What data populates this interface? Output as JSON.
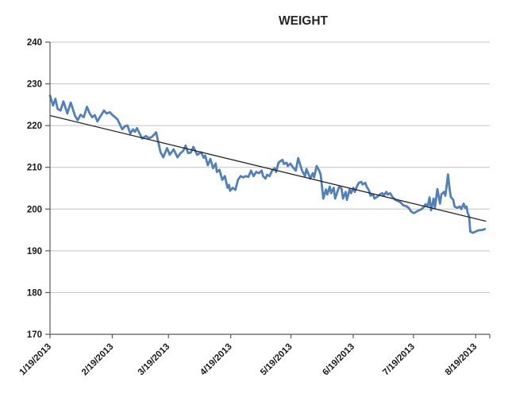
{
  "chart_data": {
    "type": "line",
    "title": "WEIGHT",
    "legend": "none",
    "grid": "horizontal",
    "colors": {
      "series": "#4F81BD",
      "trend": "#262626",
      "grid": "#C3C3C3",
      "axis": "#595959",
      "text": "#1a1a1a",
      "background": "#FFFFFF"
    },
    "x_axis": {
      "unit": "days since 1/19/2013",
      "tick_labels": [
        "1/19/2013",
        "2/19/2013",
        "3/19/2013",
        "4/19/2013",
        "5/19/2013",
        "6/19/2013",
        "7/19/2013",
        "8/19/2013"
      ],
      "tick_days": [
        0,
        31,
        59,
        90,
        120,
        151,
        181,
        212
      ],
      "range_days": [
        0,
        219
      ],
      "edge_tick_day": 219,
      "label_rotation_deg": -45
    },
    "y_axis": {
      "ticks": [
        170,
        180,
        190,
        200,
        210,
        220,
        230,
        240
      ],
      "range": [
        170,
        240
      ]
    },
    "series": [
      {
        "name": "Weight",
        "kind": "data",
        "color_key": "series",
        "stroke_width": 2.8,
        "points": [
          [
            0,
            227.2
          ],
          [
            1.5,
            224.8
          ],
          [
            2.7,
            226.4
          ],
          [
            3.8,
            224.0
          ],
          [
            5.2,
            223.6
          ],
          [
            6.7,
            225.8
          ],
          [
            8.6,
            222.9
          ],
          [
            10.3,
            225.5
          ],
          [
            12.5,
            222.3
          ],
          [
            13.8,
            221.3
          ],
          [
            15.2,
            222.6
          ],
          [
            16.8,
            222.0
          ],
          [
            18.4,
            224.5
          ],
          [
            19.7,
            223.0
          ],
          [
            21,
            222.0
          ],
          [
            22.3,
            222.5
          ],
          [
            23.6,
            221.0
          ],
          [
            25.2,
            222.3
          ],
          [
            26.9,
            223.6
          ],
          [
            28.2,
            222.9
          ],
          [
            29.8,
            223.2
          ],
          [
            31.1,
            222.5
          ],
          [
            32.2,
            222.1
          ],
          [
            33.6,
            221.5
          ],
          [
            34.8,
            220.3
          ],
          [
            36,
            219.1
          ],
          [
            37.4,
            219.9
          ],
          [
            38.6,
            220.0
          ],
          [
            40,
            218.1
          ],
          [
            41.3,
            219.1
          ],
          [
            42.3,
            218.5
          ],
          [
            43.3,
            219.4
          ],
          [
            44.6,
            218.1
          ],
          [
            45.9,
            216.9
          ],
          [
            47.8,
            217.5
          ],
          [
            49.1,
            217.0
          ],
          [
            50.5,
            217.2
          ],
          [
            51.6,
            217.7
          ],
          [
            52.8,
            218.4
          ],
          [
            54,
            215.9
          ],
          [
            55,
            213.7
          ],
          [
            56.4,
            212.4
          ],
          [
            58.3,
            214.6
          ],
          [
            59.6,
            213.0
          ],
          [
            61.6,
            214.3
          ],
          [
            63.5,
            212.4
          ],
          [
            65,
            213.4
          ],
          [
            66.3,
            213.9
          ],
          [
            67.5,
            215.2
          ],
          [
            68.8,
            213.4
          ],
          [
            70.1,
            213.5
          ],
          [
            71.4,
            214.9
          ],
          [
            73.3,
            213.0
          ],
          [
            75.3,
            213.6
          ],
          [
            76.5,
            212.3
          ],
          [
            77.3,
            212.8
          ],
          [
            78.6,
            210.5
          ],
          [
            79.9,
            212.0
          ],
          [
            81.2,
            209.8
          ],
          [
            82.5,
            210.9
          ],
          [
            83.1,
            208.9
          ],
          [
            84.4,
            209.4
          ],
          [
            85.8,
            207.0
          ],
          [
            87.1,
            207.9
          ],
          [
            88.4,
            205.1
          ],
          [
            89.1,
            205.8
          ],
          [
            89.7,
            204.4
          ],
          [
            91,
            205.1
          ],
          [
            92.3,
            204.6
          ],
          [
            93.6,
            207.0
          ],
          [
            94.9,
            207.9
          ],
          [
            96.2,
            207.6
          ],
          [
            97.5,
            207.9
          ],
          [
            98.8,
            207.7
          ],
          [
            100.1,
            209.2
          ],
          [
            101.4,
            207.9
          ],
          [
            102.7,
            208.9
          ],
          [
            104,
            208.6
          ],
          [
            105.4,
            209.2
          ],
          [
            106.1,
            207.9
          ],
          [
            107.3,
            207.3
          ],
          [
            108.1,
            208.2
          ],
          [
            109.3,
            207.9
          ],
          [
            110.6,
            209.2
          ],
          [
            111.9,
            209.8
          ],
          [
            112.6,
            208.9
          ],
          [
            113.8,
            211.1
          ],
          [
            114.5,
            211.4
          ],
          [
            115.8,
            211.8
          ],
          [
            116.5,
            210.8
          ],
          [
            117.8,
            211.1
          ],
          [
            118.4,
            210.3
          ],
          [
            119.7,
            210.9
          ],
          [
            121,
            210.0
          ],
          [
            122.4,
            209.2
          ],
          [
            123.6,
            212.2
          ],
          [
            125,
            210.0
          ],
          [
            125.7,
            209.0
          ],
          [
            127,
            207.9
          ],
          [
            127.7,
            209.6
          ],
          [
            128.9,
            208.2
          ],
          [
            129.6,
            207.3
          ],
          [
            130.9,
            208.6
          ],
          [
            131.5,
            207.6
          ],
          [
            132.8,
            210.3
          ],
          [
            134.1,
            209.2
          ],
          [
            134.8,
            208.2
          ],
          [
            136.1,
            202.5
          ],
          [
            137.4,
            204.7
          ],
          [
            138.1,
            203.5
          ],
          [
            139.3,
            205.4
          ],
          [
            140,
            203.8
          ],
          [
            141.3,
            205.1
          ],
          [
            142,
            202.5
          ],
          [
            143.3,
            204.4
          ],
          [
            144,
            205.4
          ],
          [
            145.2,
            204.9
          ],
          [
            145.9,
            202.5
          ],
          [
            147.2,
            204.1
          ],
          [
            147.9,
            202.2
          ],
          [
            149.2,
            204.7
          ],
          [
            149.9,
            203.8
          ],
          [
            151.1,
            205.1
          ],
          [
            151.8,
            204.1
          ],
          [
            153.1,
            205.7
          ],
          [
            153.8,
            206.3
          ],
          [
            155,
            206.5
          ],
          [
            155.7,
            205.9
          ],
          [
            157,
            206.3
          ],
          [
            157.7,
            205.4
          ],
          [
            158.9,
            204.4
          ],
          [
            159.6,
            203.2
          ],
          [
            160.9,
            203.5
          ],
          [
            161.6,
            202.5
          ],
          [
            162.9,
            202.9
          ],
          [
            164.2,
            203.5
          ],
          [
            165.5,
            203.8
          ],
          [
            166.2,
            203.2
          ],
          [
            167.5,
            204.1
          ],
          [
            168.2,
            203.5
          ],
          [
            169.4,
            203.8
          ],
          [
            170.7,
            202.8
          ],
          [
            172,
            202.2
          ],
          [
            173.3,
            201.9
          ],
          [
            174.6,
            201.6
          ],
          [
            175.9,
            200.9
          ],
          [
            177.3,
            200.7
          ],
          [
            178.6,
            200.3
          ],
          [
            179.9,
            199.4
          ],
          [
            181.2,
            199.0
          ],
          [
            182.5,
            199.4
          ],
          [
            183.8,
            199.7
          ],
          [
            185.1,
            200.0
          ],
          [
            185.8,
            200.3
          ],
          [
            187.1,
            201.2
          ],
          [
            188.1,
            200.6
          ],
          [
            189,
            202.8
          ],
          [
            189.8,
            199.7
          ],
          [
            191,
            202.5
          ],
          [
            191.7,
            200.3
          ],
          [
            192.9,
            204.8
          ],
          [
            194.2,
            201.3
          ],
          [
            194.9,
            203.5
          ],
          [
            196.2,
            204.1
          ],
          [
            196.9,
            203.2
          ],
          [
            198.2,
            208.3
          ],
          [
            198.9,
            205.1
          ],
          [
            199.6,
            202.9
          ],
          [
            200.8,
            202.2
          ],
          [
            201.5,
            200.6
          ],
          [
            202.8,
            200.3
          ],
          [
            204.1,
            200.6
          ],
          [
            204.8,
            200.0
          ],
          [
            206,
            201.3
          ],
          [
            206.7,
            200.3
          ],
          [
            207.4,
            200.6
          ],
          [
            208,
            199.0
          ],
          [
            208.7,
            198.4
          ],
          [
            209.3,
            194.6
          ],
          [
            210.6,
            194.3
          ],
          [
            211.9,
            194.6
          ],
          [
            213.2,
            194.9
          ],
          [
            215.2,
            195.0
          ],
          [
            216.5,
            195.2
          ]
        ]
      },
      {
        "name": "Linear trend",
        "kind": "trendline",
        "color_key": "trend",
        "stroke_width": 1.3,
        "points": [
          [
            0,
            222.4
          ],
          [
            217,
            197.1
          ]
        ]
      }
    ]
  }
}
